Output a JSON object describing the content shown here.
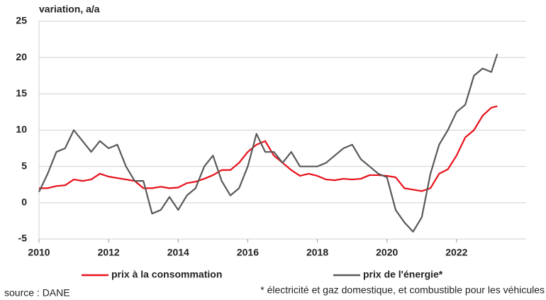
{
  "chart_data": {
    "type": "line",
    "y_label": "variation, a/a",
    "source": "source : DANE",
    "footnote": "* électricité et gaz domestique, et combustible pour les véhicules",
    "x": [
      2010.0,
      2010.25,
      2010.5,
      2010.75,
      2011.0,
      2011.25,
      2011.5,
      2011.75,
      2012.0,
      2012.25,
      2012.5,
      2012.75,
      2013.0,
      2013.25,
      2013.5,
      2013.75,
      2014.0,
      2014.25,
      2014.5,
      2014.75,
      2015.0,
      2015.25,
      2015.5,
      2015.75,
      2016.0,
      2016.25,
      2016.5,
      2016.75,
      2017.0,
      2017.25,
      2017.5,
      2017.75,
      2018.0,
      2018.25,
      2018.5,
      2018.75,
      2019.0,
      2019.25,
      2019.5,
      2019.75,
      2020.0,
      2020.25,
      2020.5,
      2020.75,
      2021.0,
      2021.25,
      2021.5,
      2021.75,
      2022.0,
      2022.25,
      2022.5,
      2022.75,
      2023.0,
      2023.17
    ],
    "series": [
      {
        "name": "prix à la consommation",
        "color": "#e8101a",
        "values": [
          2.0,
          2.0,
          2.3,
          2.4,
          3.2,
          3.0,
          3.2,
          4.0,
          3.6,
          3.4,
          3.2,
          3.0,
          2.0,
          2.0,
          2.2,
          2.0,
          2.1,
          2.7,
          2.9,
          3.3,
          3.8,
          4.5,
          4.5,
          5.5,
          7.0,
          8.0,
          8.5,
          6.5,
          5.5,
          4.5,
          3.7,
          4.0,
          3.7,
          3.2,
          3.1,
          3.3,
          3.2,
          3.3,
          3.8,
          3.8,
          3.7,
          3.5,
          2.0,
          1.8,
          1.6,
          2.0,
          4.0,
          4.6,
          6.5,
          9.0,
          10.0,
          12.0,
          13.1,
          13.3
        ]
      },
      {
        "name": "prix de l'énergie*",
        "color": "#595959",
        "values": [
          1.5,
          4.0,
          7.0,
          7.5,
          10.0,
          8.5,
          7.0,
          8.5,
          7.5,
          8.0,
          5.0,
          3.0,
          3.0,
          -1.5,
          -1.0,
          0.8,
          -1.0,
          1.0,
          2.0,
          5.0,
          6.5,
          3.0,
          1.0,
          2.0,
          5.0,
          9.5,
          7.0,
          7.0,
          5.5,
          7.0,
          5.0,
          5.0,
          5.0,
          5.5,
          6.5,
          7.5,
          8.0,
          6.0,
          5.0,
          4.0,
          3.5,
          -1.0,
          -2.7,
          -4.0,
          -2.0,
          4.0,
          8.0,
          10.0,
          12.5,
          13.5,
          17.5,
          18.5,
          18.0,
          20.5
        ]
      }
    ],
    "xlim": [
      2010,
      2024
    ],
    "xticks": [
      2010,
      2012,
      2014,
      2016,
      2018,
      2020,
      2022
    ],
    "ylim": [
      -5,
      25
    ],
    "yticks": [
      -5,
      0,
      5,
      10,
      15,
      20,
      25
    ],
    "grid": true,
    "legend": "bottom"
  }
}
